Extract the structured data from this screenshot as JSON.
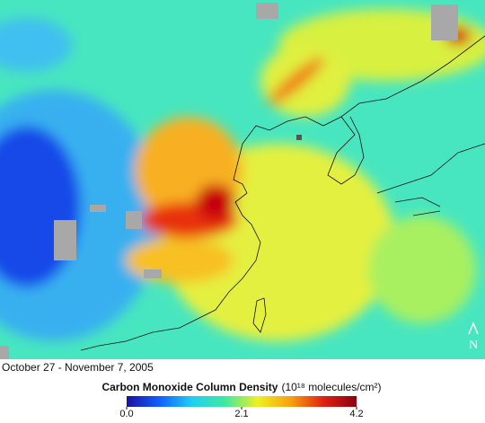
{
  "map": {
    "caption": "October 27 - November 7, 2005",
    "north_label": "N"
  },
  "colorbar": {
    "title": "Carbon Monoxide Column Density",
    "unit": "(10¹⁸ molecules/cm²)",
    "lim": [
      0,
      4.2
    ],
    "ticks": [
      {
        "value": 0,
        "label": "0.0"
      },
      2.1,
      4.2
    ],
    "colors": [
      "#1a10a0",
      "#1060ff",
      "#20d0f0",
      "#40e8a0",
      "#f0f020",
      "#f8a010",
      "#e02010",
      "#8a0010"
    ]
  }
}
